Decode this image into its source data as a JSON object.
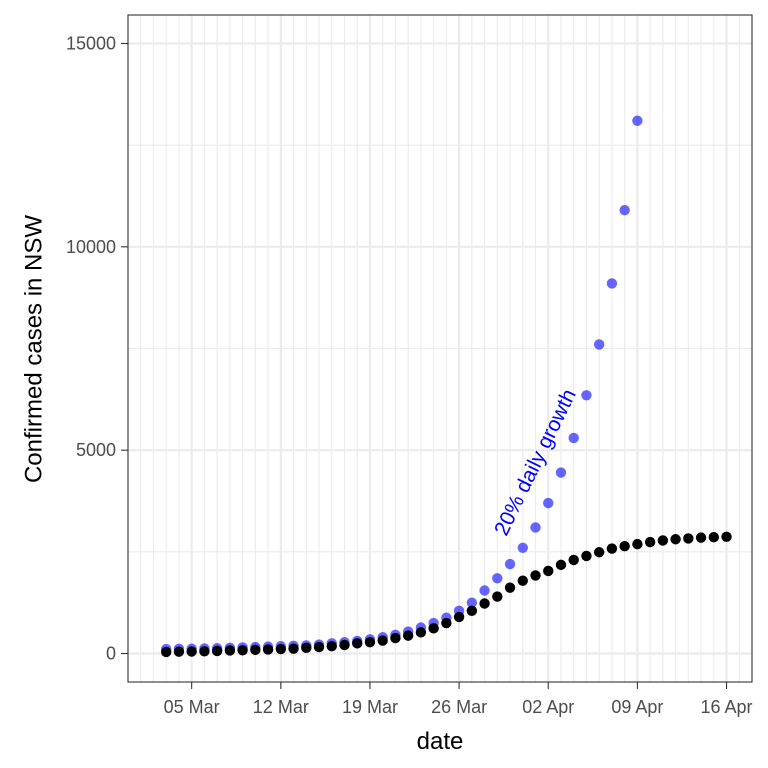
{
  "chart_data": {
    "type": "scatter",
    "xlabel": "date",
    "ylabel": "Confirmed cases in NSW",
    "x_ticks": [
      "05 Mar",
      "12 Mar",
      "19 Mar",
      "26 Mar",
      "02 Apr",
      "09 Apr",
      "16 Apr"
    ],
    "y_ticks": [
      "0",
      "5000",
      "10000",
      "15000"
    ],
    "ylim": [
      -700,
      15700
    ],
    "xlim": [
      "2020-02-29",
      "2020-04-18"
    ],
    "grid": true,
    "legend": "none",
    "annotation": {
      "text": "20% daily growth",
      "date": "2020-04-01",
      "y": 4700,
      "angle": -64,
      "color": "#0000ff"
    },
    "series": [
      {
        "color": "#000000",
        "opacity": 1,
        "points": [
          [
            "2020-03-03",
            40
          ],
          [
            "2020-03-04",
            45
          ],
          [
            "2020-03-05",
            50
          ],
          [
            "2020-03-06",
            55
          ],
          [
            "2020-03-07",
            65
          ],
          [
            "2020-03-08",
            75
          ],
          [
            "2020-03-09",
            80
          ],
          [
            "2020-03-10",
            90
          ],
          [
            "2020-03-11",
            100
          ],
          [
            "2020-03-12",
            110
          ],
          [
            "2020-03-13",
            120
          ],
          [
            "2020-03-14",
            140
          ],
          [
            "2020-03-15",
            160
          ],
          [
            "2020-03-16",
            180
          ],
          [
            "2020-03-17",
            210
          ],
          [
            "2020-03-18",
            250
          ],
          [
            "2020-03-19",
            280
          ],
          [
            "2020-03-20",
            320
          ],
          [
            "2020-03-21",
            380
          ],
          [
            "2020-03-22",
            440
          ],
          [
            "2020-03-23",
            520
          ],
          [
            "2020-03-24",
            620
          ],
          [
            "2020-03-25",
            750
          ],
          [
            "2020-03-26",
            900
          ],
          [
            "2020-03-27",
            1050
          ],
          [
            "2020-03-28",
            1230
          ],
          [
            "2020-03-29",
            1400
          ],
          [
            "2020-03-30",
            1620
          ],
          [
            "2020-03-31",
            1790
          ],
          [
            "2020-04-01",
            1920
          ],
          [
            "2020-04-02",
            2030
          ],
          [
            "2020-04-03",
            2180
          ],
          [
            "2020-04-04",
            2300
          ],
          [
            "2020-04-05",
            2400
          ],
          [
            "2020-04-06",
            2490
          ],
          [
            "2020-04-07",
            2580
          ],
          [
            "2020-04-08",
            2640
          ],
          [
            "2020-04-09",
            2690
          ],
          [
            "2020-04-10",
            2740
          ],
          [
            "2020-04-11",
            2780
          ],
          [
            "2020-04-12",
            2810
          ],
          [
            "2020-04-13",
            2830
          ],
          [
            "2020-04-14",
            2850
          ],
          [
            "2020-04-15",
            2860
          ],
          [
            "2020-04-16",
            2870
          ]
        ]
      },
      {
        "color": "#0000ff",
        "opacity": 0.6,
        "points": [
          [
            "2020-03-03",
            110
          ],
          [
            "2020-03-04",
            115
          ],
          [
            "2020-03-05",
            120
          ],
          [
            "2020-03-06",
            125
          ],
          [
            "2020-03-07",
            130
          ],
          [
            "2020-03-08",
            140
          ],
          [
            "2020-03-09",
            150
          ],
          [
            "2020-03-10",
            160
          ],
          [
            "2020-03-11",
            170
          ],
          [
            "2020-03-12",
            180
          ],
          [
            "2020-03-13",
            190
          ],
          [
            "2020-03-14",
            200
          ],
          [
            "2020-03-15",
            220
          ],
          [
            "2020-03-16",
            250
          ],
          [
            "2020-03-17",
            280
          ],
          [
            "2020-03-18",
            310
          ],
          [
            "2020-03-19",
            350
          ],
          [
            "2020-03-20",
            400
          ],
          [
            "2020-03-21",
            460
          ],
          [
            "2020-03-22",
            540
          ],
          [
            "2020-03-23",
            640
          ],
          [
            "2020-03-24",
            750
          ],
          [
            "2020-03-25",
            880
          ],
          [
            "2020-03-26",
            1050
          ],
          [
            "2020-03-27",
            1250
          ],
          [
            "2020-03-28",
            1550
          ],
          [
            "2020-03-29",
            1850
          ],
          [
            "2020-03-30",
            2200
          ],
          [
            "2020-03-31",
            2600
          ],
          [
            "2020-04-01",
            3100
          ],
          [
            "2020-04-02",
            3700
          ],
          [
            "2020-04-03",
            4450
          ],
          [
            "2020-04-04",
            5300
          ],
          [
            "2020-04-05",
            6350
          ],
          [
            "2020-04-06",
            7600
          ],
          [
            "2020-04-07",
            9100
          ],
          [
            "2020-04-08",
            10900
          ],
          [
            "2020-04-09",
            13100
          ]
        ]
      }
    ]
  }
}
